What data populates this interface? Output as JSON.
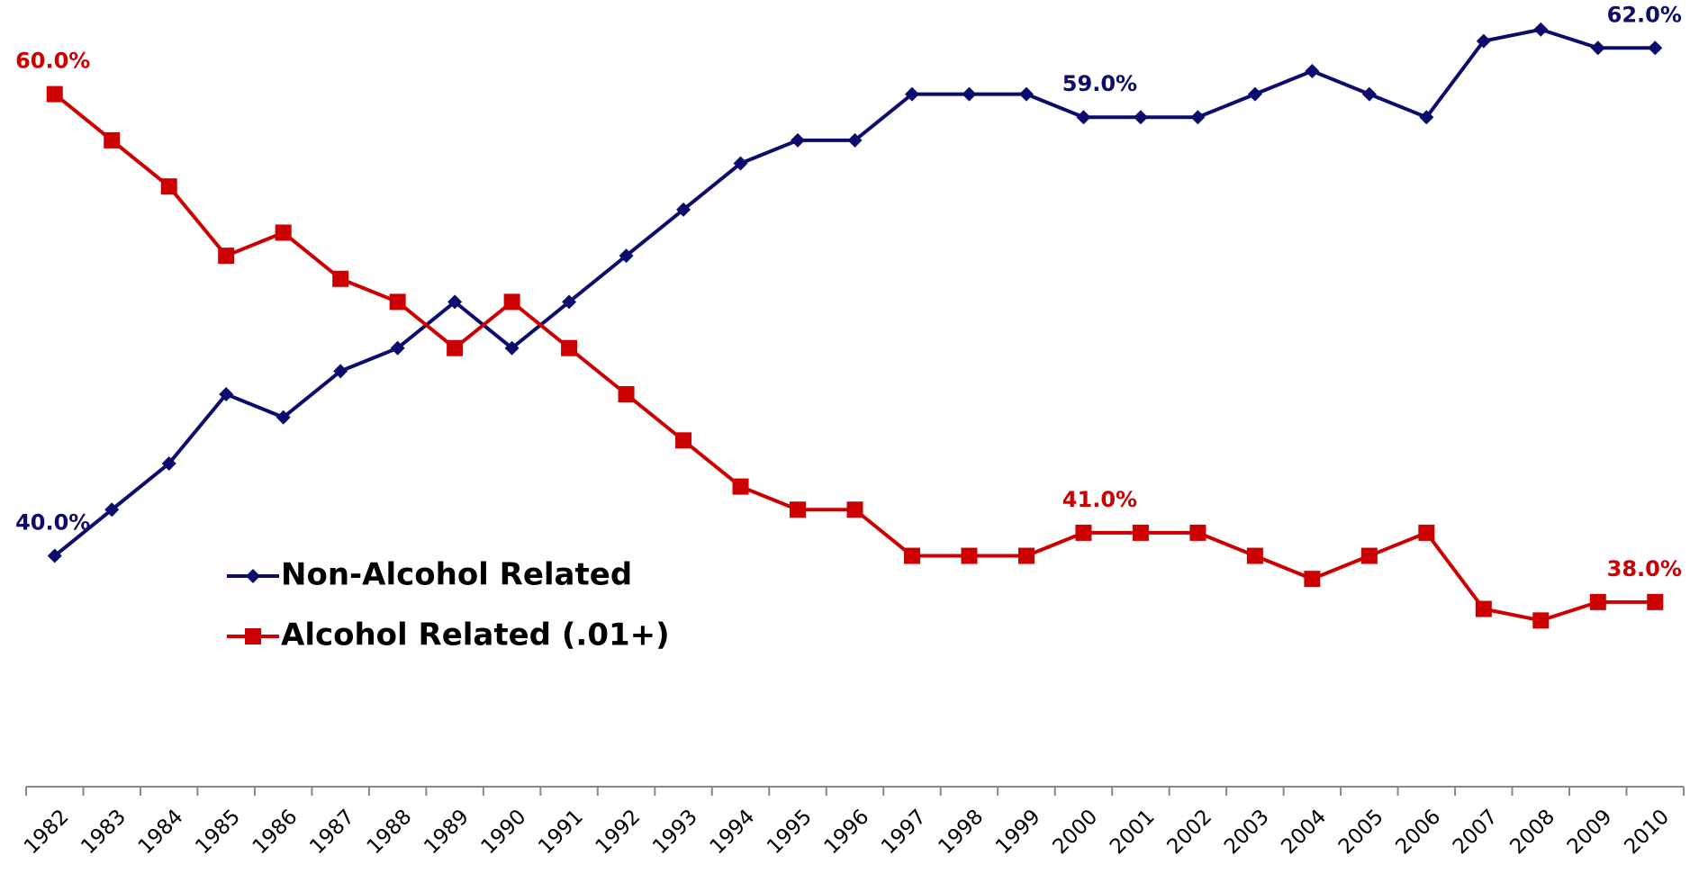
{
  "chart_data": {
    "type": "line",
    "categories": [
      "1982",
      "1983",
      "1984",
      "1985",
      "1986",
      "1987",
      "1988",
      "1989",
      "1990",
      "1991",
      "1992",
      "1993",
      "1994",
      "1995",
      "1996",
      "1997",
      "1998",
      "1999",
      "2000",
      "2001",
      "2002",
      "2003",
      "2004",
      "2005",
      "2006",
      "2007",
      "2008",
      "2009",
      "2010"
    ],
    "series": [
      {
        "name": "Non-Alcohol Related",
        "color": "#0c0c6e",
        "marker": "diamond",
        "values": [
          40,
          42,
          44,
          47,
          46,
          48,
          49,
          51,
          49,
          51,
          53,
          55,
          57,
          58,
          58,
          60,
          60,
          60,
          59,
          59,
          59,
          60,
          61,
          60,
          59,
          62.3,
          62.8,
          62,
          62
        ],
        "value_labels": [
          "40.0%",
          null,
          null,
          null,
          null,
          null,
          null,
          null,
          null,
          null,
          null,
          null,
          null,
          null,
          null,
          null,
          null,
          null,
          "59.0%",
          null,
          null,
          null,
          null,
          null,
          null,
          null,
          null,
          null,
          "62.0%"
        ]
      },
      {
        "name": "Alcohol Related (.01+)",
        "color": "#cc0000",
        "marker": "square",
        "values": [
          60,
          58,
          56,
          53,
          54,
          52,
          51,
          49,
          51,
          49,
          47,
          45,
          43,
          42,
          42,
          40,
          40,
          40,
          41,
          41,
          41,
          40,
          39,
          40,
          41,
          37.7,
          37.2,
          38,
          38
        ],
        "value_labels": [
          "60.0%",
          null,
          null,
          null,
          null,
          null,
          null,
          null,
          null,
          null,
          null,
          null,
          null,
          null,
          null,
          null,
          null,
          null,
          "41.0%",
          null,
          null,
          null,
          null,
          null,
          null,
          null,
          null,
          null,
          "38.0%"
        ]
      }
    ],
    "ylim": [
      30,
      64
    ],
    "legend": "center-left"
  }
}
